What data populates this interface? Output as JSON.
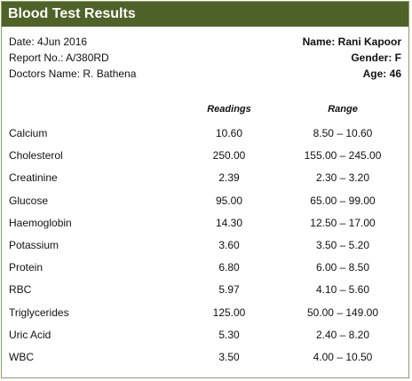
{
  "title": "Blood Test Results",
  "meta": {
    "date": "Date: 4Jun 2016",
    "report": "Report No.: A/380RD",
    "doctor": "Doctors Name: R. Bathena",
    "name": "Name: Rani Kapoor",
    "gender": "Gender: F",
    "age": "Age: 46"
  },
  "columns": {
    "readings": "Readings",
    "range": "Range"
  },
  "rows": [
    {
      "name": "Calcium",
      "reading": "10.60",
      "range": "8.50 – 10.60"
    },
    {
      "name": "Cholesterol",
      "reading": "250.00",
      "range": "155.00 – 245.00"
    },
    {
      "name": "Creatinine",
      "reading": "2.39",
      "range": "2.30 – 3.20"
    },
    {
      "name": "Glucose",
      "reading": "95.00",
      "range": "65.00 – 99.00"
    },
    {
      "name": "Haemoglobin",
      "reading": "14.30",
      "range": "12.50 – 17.00"
    },
    {
      "name": "Potassium",
      "reading": "3.60",
      "range": "3.50 – 5.20"
    },
    {
      "name": "Protein",
      "reading": "6.80",
      "range": "6.00 – 8.50"
    },
    {
      "name": "RBC",
      "reading": "5.97",
      "range": "4.10 – 5.60"
    },
    {
      "name": "Triglycerides",
      "reading": "125.00",
      "range": "50.00 – 149.00"
    },
    {
      "name": "Uric Acid",
      "reading": "5.30",
      "range": "2.40 – 8.20"
    },
    {
      "name": "WBC",
      "reading": "3.50",
      "range": "4.00 – 10.50"
    }
  ]
}
